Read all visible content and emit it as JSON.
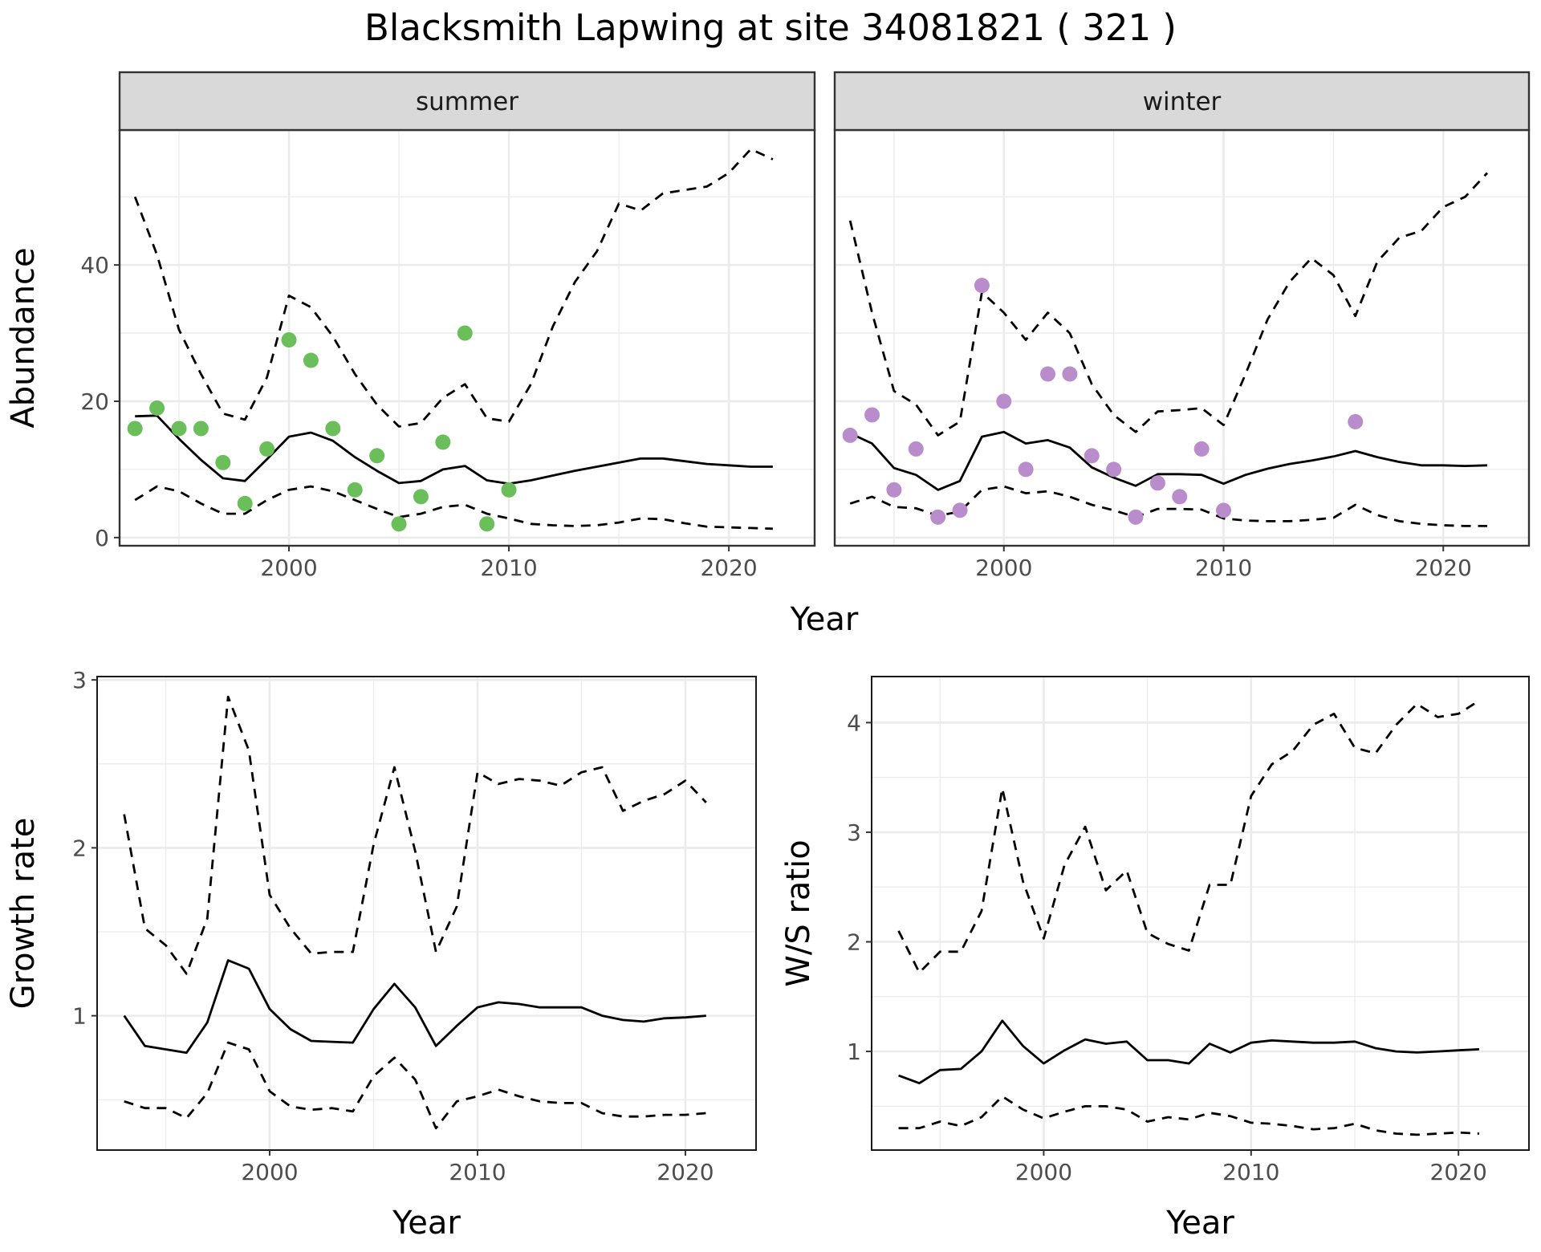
{
  "title": "Blacksmith Lapwing at site 34081821 ( 321 )",
  "colors": {
    "summer_points": "#6abf5a",
    "winter_points": "#b98ccb",
    "lines": "#000000",
    "panel_border": "#333333",
    "grid": "#ebebeb",
    "strip_fill": "#d9d9d9"
  },
  "chart_data": [
    {
      "id": "abundance",
      "type": "line",
      "facets": [
        "summer",
        "winter"
      ],
      "xlabel": "Year",
      "ylabel": "Abundance",
      "xlim": [
        1992.3,
        2023.9
      ],
      "ylim": [
        -1.2,
        59.8
      ],
      "xticks": [
        2000,
        2010,
        2020
      ],
      "yticks": [
        0,
        20,
        40
      ],
      "minor_xgrid": [
        1995,
        2005,
        2015
      ],
      "minor_ygrid": [
        10,
        30,
        50
      ],
      "panels": [
        {
          "strip": "summer",
          "observed": {
            "x": [
              1993,
              1994,
              1995,
              1996,
              1997,
              1998,
              1999,
              2000,
              2001,
              2002,
              2003,
              2004,
              2005,
              2006,
              2007,
              2008,
              2009,
              2010
            ],
            "y": [
              16,
              19,
              16,
              16,
              11,
              5,
              13,
              29,
              26,
              16,
              7,
              12,
              2,
              6,
              14,
              30,
              2,
              7
            ]
          },
          "estimate": {
            "x": [
              1993,
              1994,
              1995,
              1996,
              1997,
              1998,
              1999,
              2000,
              2001,
              2002,
              2003,
              2004,
              2005,
              2006,
              2007,
              2008,
              2009,
              2010,
              2011,
              2012,
              2013,
              2014,
              2015,
              2016,
              2017,
              2018,
              2019,
              2020,
              2021,
              2022
            ],
            "y": [
              17.8,
              17.9,
              14.5,
              11.4,
              8.7,
              8.3,
              11.5,
              14.8,
              15.4,
              14.2,
              11.8,
              9.8,
              8.0,
              8.3,
              10.0,
              10.5,
              8.4,
              7.9,
              8.4,
              9.1,
              9.8,
              10.4,
              11.0,
              11.6,
              11.6,
              11.2,
              10.8,
              10.6,
              10.4,
              10.4
            ]
          },
          "lower": {
            "x": [
              1993,
              1994,
              1995,
              1996,
              1997,
              1998,
              1999,
              2000,
              2001,
              2002,
              2003,
              2004,
              2005,
              2006,
              2007,
              2008,
              2009,
              2010,
              2011,
              2012,
              2013,
              2014,
              2015,
              2016,
              2017,
              2018,
              2019,
              2020,
              2021,
              2022
            ],
            "y": [
              5.5,
              7.5,
              6.8,
              5.0,
              3.5,
              3.5,
              5.5,
              7.0,
              7.5,
              6.8,
              5.5,
              4.2,
              3.0,
              3.5,
              4.5,
              4.8,
              3.5,
              2.8,
              2.0,
              1.8,
              1.7,
              1.8,
              2.2,
              2.8,
              2.7,
              2.1,
              1.6,
              1.5,
              1.4,
              1.3
            ]
          },
          "upper": {
            "x": [
              1993,
              1994,
              1995,
              1996,
              1997,
              1998,
              1999,
              2000,
              2001,
              2002,
              2003,
              2004,
              2005,
              2006,
              2007,
              2008,
              2009,
              2010,
              2011,
              2012,
              2013,
              2014,
              2015,
              2016,
              2017,
              2018,
              2019,
              2020,
              2021,
              2022
            ],
            "y": [
              50,
              41.5,
              30.5,
              24,
              18.2,
              17.3,
              23.5,
              35.5,
              33.8,
              29.5,
              24,
              19.5,
              16.3,
              16.8,
              20.5,
              22.5,
              17.5,
              17,
              22.5,
              31,
              37.5,
              42,
              49,
              48,
              50.5,
              51,
              51.5,
              53.5,
              57,
              55.5
            ]
          }
        },
        {
          "strip": "winter",
          "observed": {
            "x": [
              1993,
              1994,
              1995,
              1996,
              1997,
              1998,
              1999,
              2000,
              2001,
              2002,
              2003,
              2004,
              2005,
              2006,
              2007,
              2008,
              2009,
              2010,
              2016
            ],
            "y": [
              15,
              18,
              7,
              13,
              3,
              4,
              37,
              20,
              10,
              24,
              24,
              12,
              10,
              3,
              8,
              6,
              13,
              4,
              17
            ]
          },
          "estimate": {
            "x": [
              1993,
              1994,
              1995,
              1996,
              1997,
              1998,
              1999,
              2000,
              2001,
              2002,
              2003,
              2004,
              2005,
              2006,
              2007,
              2008,
              2009,
              2010,
              2011,
              2012,
              2013,
              2014,
              2015,
              2016,
              2017,
              2018,
              2019,
              2020,
              2021,
              2022
            ],
            "y": [
              15.3,
              13.8,
              10.2,
              9.2,
              7.0,
              8.3,
              14.8,
              15.5,
              13.8,
              14.3,
              13.2,
              10.3,
              8.8,
              7.6,
              9.3,
              9.3,
              9.2,
              7.9,
              9.2,
              10.1,
              10.8,
              11.3,
              11.9,
              12.7,
              11.8,
              11.1,
              10.6,
              10.6,
              10.5,
              10.6
            ]
          },
          "lower": {
            "x": [
              1993,
              1994,
              1995,
              1996,
              1997,
              1998,
              1999,
              2000,
              2001,
              2002,
              2003,
              2004,
              2005,
              2006,
              2007,
              2008,
              2009,
              2010,
              2011,
              2012,
              2013,
              2014,
              2015,
              2016,
              2017,
              2018,
              2019,
              2020,
              2021,
              2022
            ],
            "y": [
              5.0,
              6.0,
              4.5,
              4.3,
              3.2,
              3.8,
              7.0,
              7.5,
              6.5,
              6.8,
              6.0,
              4.8,
              4.0,
              3.0,
              4.2,
              4.2,
              4.1,
              2.8,
              2.5,
              2.4,
              2.4,
              2.6,
              2.9,
              4.8,
              3.3,
              2.4,
              2.0,
              1.8,
              1.7,
              1.7
            ]
          },
          "upper": {
            "x": [
              1993,
              1994,
              1995,
              1996,
              1997,
              1998,
              1999,
              2000,
              2001,
              2002,
              2003,
              2004,
              2005,
              2006,
              2007,
              2008,
              2009,
              2010,
              2011,
              2012,
              2013,
              2014,
              2015,
              2016,
              2017,
              2018,
              2019,
              2020,
              2021,
              2022
            ],
            "y": [
              46.5,
              33,
              21.5,
              19.5,
              15,
              17,
              36,
              33,
              29,
              33,
              30,
              22.5,
              18,
              15.5,
              18.5,
              18.7,
              19,
              16.5,
              24,
              32,
              37.5,
              41,
              38.5,
              32.5,
              40.5,
              44,
              45,
              48.5,
              50,
              53.5
            ]
          }
        }
      ]
    },
    {
      "id": "growth-rate",
      "type": "line",
      "xlabel": "Year",
      "ylabel": "Growth rate",
      "xlim": [
        1991.7,
        2023.4
      ],
      "ylim": [
        0.2,
        3.02
      ],
      "xticks": [
        2000,
        2010,
        2020
      ],
      "yticks": [
        1,
        2,
        3
      ],
      "minor_xgrid": [
        1995,
        2005,
        2015
      ],
      "minor_ygrid": [
        0.5,
        1.5,
        2.5
      ],
      "estimate": {
        "x": [
          1993,
          1994,
          1995,
          1996,
          1997,
          1998,
          1999,
          2000,
          2001,
          2002,
          2003,
          2004,
          2005,
          2006,
          2007,
          2008,
          2009,
          2010,
          2011,
          2012,
          2013,
          2014,
          2015,
          2016,
          2017,
          2018,
          2019,
          2020,
          2021
        ],
        "y": [
          1.0,
          0.82,
          0.8,
          0.78,
          0.96,
          1.33,
          1.28,
          1.04,
          0.92,
          0.85,
          0.845,
          0.84,
          1.04,
          1.19,
          1.05,
          0.82,
          0.94,
          1.05,
          1.08,
          1.07,
          1.05,
          1.05,
          1.05,
          1.0,
          0.975,
          0.965,
          0.985,
          0.99,
          1.0
        ]
      },
      "lower": {
        "x": [
          1993,
          1994,
          1995,
          1996,
          1997,
          1998,
          1999,
          2000,
          2001,
          2002,
          2003,
          2004,
          2005,
          2006,
          2007,
          2008,
          2009,
          2010,
          2011,
          2012,
          2013,
          2014,
          2015,
          2016,
          2017,
          2018,
          2019,
          2020,
          2021
        ],
        "y": [
          0.49,
          0.45,
          0.45,
          0.39,
          0.54,
          0.84,
          0.8,
          0.55,
          0.46,
          0.44,
          0.45,
          0.43,
          0.64,
          0.75,
          0.62,
          0.33,
          0.49,
          0.52,
          0.56,
          0.52,
          0.49,
          0.48,
          0.48,
          0.42,
          0.4,
          0.4,
          0.41,
          0.41,
          0.42
        ]
      },
      "upper": {
        "x": [
          1993,
          1994,
          1995,
          1996,
          1997,
          1998,
          1999,
          2000,
          2001,
          2002,
          2003,
          2004,
          2005,
          2006,
          2007,
          2008,
          2009,
          2010,
          2011,
          2012,
          2013,
          2014,
          2015,
          2016,
          2017,
          2018,
          2019,
          2020,
          2021
        ],
        "y": [
          2.2,
          1.52,
          1.42,
          1.25,
          1.58,
          2.9,
          2.58,
          1.72,
          1.52,
          1.37,
          1.38,
          1.38,
          2.02,
          2.48,
          1.98,
          1.38,
          1.65,
          2.45,
          2.38,
          2.41,
          2.4,
          2.37,
          2.45,
          2.48,
          2.22,
          2.28,
          2.32,
          2.4,
          2.27
        ]
      }
    },
    {
      "id": "ws-ratio",
      "type": "line",
      "xlabel": "Year",
      "ylabel": "W/S ratio",
      "xlim": [
        1991.7,
        2023.4
      ],
      "ylim": [
        0.1,
        4.42
      ],
      "xticks": [
        2000,
        2010,
        2020
      ],
      "yticks": [
        1,
        2,
        3,
        4
      ],
      "minor_xgrid": [
        1995,
        2005,
        2015
      ],
      "minor_ygrid": [
        0.5,
        1.5,
        2.5,
        3.5
      ],
      "estimate": {
        "x": [
          1993,
          1994,
          1995,
          1996,
          1997,
          1998,
          1999,
          2000,
          2001,
          2002,
          2003,
          2004,
          2005,
          2006,
          2007,
          2008,
          2009,
          2010,
          2011,
          2012,
          2013,
          2014,
          2015,
          2016,
          2017,
          2018,
          2019,
          2020,
          2021
        ],
        "y": [
          0.78,
          0.71,
          0.83,
          0.84,
          1.0,
          1.28,
          1.05,
          0.89,
          1.01,
          1.11,
          1.07,
          1.09,
          0.92,
          0.92,
          0.89,
          1.07,
          0.99,
          1.08,
          1.1,
          1.09,
          1.08,
          1.08,
          1.09,
          1.03,
          1.0,
          0.99,
          1.0,
          1.01,
          1.02
        ]
      },
      "lower": {
        "x": [
          1993,
          1994,
          1995,
          1996,
          1997,
          1998,
          1999,
          2000,
          2001,
          2002,
          2003,
          2004,
          2005,
          2006,
          2007,
          2008,
          2009,
          2010,
          2011,
          2012,
          2013,
          2014,
          2015,
          2016,
          2017,
          2018,
          2019,
          2020,
          2021
        ],
        "y": [
          0.3,
          0.3,
          0.36,
          0.32,
          0.4,
          0.59,
          0.47,
          0.39,
          0.45,
          0.5,
          0.5,
          0.47,
          0.36,
          0.4,
          0.38,
          0.44,
          0.41,
          0.35,
          0.34,
          0.32,
          0.29,
          0.3,
          0.34,
          0.28,
          0.25,
          0.24,
          0.25,
          0.26,
          0.25
        ]
      },
      "upper": {
        "x": [
          1993,
          1994,
          1995,
          1996,
          1997,
          1998,
          1999,
          2000,
          2001,
          2002,
          2003,
          2004,
          2005,
          2006,
          2007,
          2008,
          2009,
          2010,
          2011,
          2012,
          2013,
          2014,
          2015,
          2016,
          2017,
          2018,
          2019,
          2020,
          2021
        ],
        "y": [
          2.1,
          1.72,
          1.91,
          1.91,
          2.28,
          3.4,
          2.55,
          2.03,
          2.7,
          3.05,
          2.47,
          2.65,
          2.08,
          1.98,
          1.92,
          2.52,
          2.52,
          3.33,
          3.62,
          3.74,
          3.98,
          4.08,
          3.77,
          3.72,
          3.98,
          4.17,
          4.05,
          4.08,
          4.2
        ]
      }
    }
  ]
}
